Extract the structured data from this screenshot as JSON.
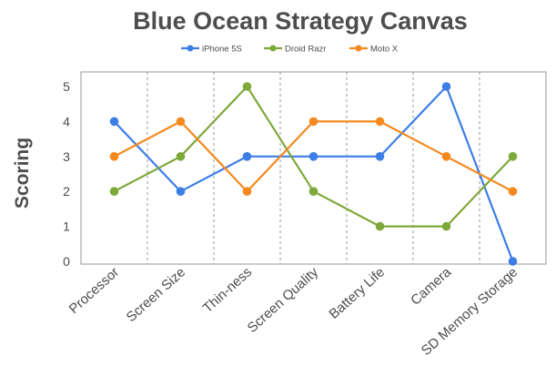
{
  "chart_data": {
    "type": "line",
    "title": "Blue Ocean Strategy Canvas",
    "xlabel": "",
    "ylabel": "Scoring",
    "ylim": [
      0,
      5
    ],
    "yticks": [
      0,
      1,
      2,
      3,
      4,
      5
    ],
    "categories": [
      "Processor",
      "Screen Size",
      "Thin-ness",
      "Screen Quality",
      "Battery Life",
      "Camera",
      "SD Memory Storage"
    ],
    "series": [
      {
        "name": "iPhone 5S",
        "color": "#3d7ee6",
        "values": [
          4,
          2,
          3,
          3,
          3,
          5,
          0
        ]
      },
      {
        "name": "Droid Razr",
        "color": "#7ea83a",
        "values": [
          2,
          3,
          5,
          2,
          1,
          1,
          3
        ]
      },
      {
        "name": "Moto X",
        "color": "#f5891f",
        "values": [
          3,
          4,
          2,
          4,
          4,
          3,
          2
        ]
      }
    ],
    "legend_position": "top-center",
    "grid": "vertical dashed separators between categories"
  }
}
